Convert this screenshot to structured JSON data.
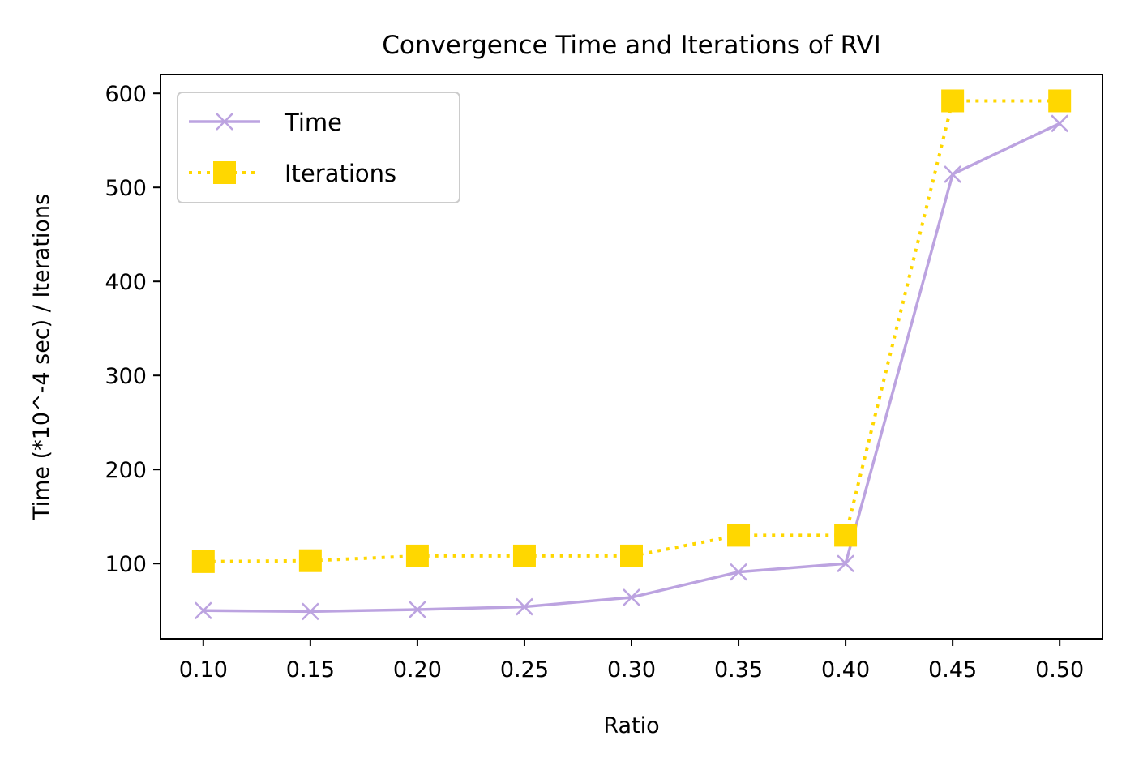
{
  "chart_data": {
    "type": "line",
    "title": "Convergence Time and Iterations of RVI",
    "xlabel": "Ratio",
    "ylabel": "Time (*10^-4 sec) / Iterations",
    "x": [
      0.1,
      0.15,
      0.2,
      0.25,
      0.3,
      0.35,
      0.4,
      0.45,
      0.5
    ],
    "x_tick_labels": [
      "0.10",
      "0.15",
      "0.20",
      "0.25",
      "0.30",
      "0.35",
      "0.40",
      "0.45",
      "0.50"
    ],
    "y_ticks": [
      100,
      200,
      300,
      400,
      500,
      600
    ],
    "y_tick_labels": [
      "100",
      "200",
      "300",
      "400",
      "500",
      "600"
    ],
    "xlim": [
      0.08,
      0.52
    ],
    "ylim": [
      20,
      620
    ],
    "grid": false,
    "legend_position": "top-left",
    "series": [
      {
        "name": "Time",
        "values": [
          50,
          49,
          51,
          54,
          64,
          91,
          100,
          514,
          568
        ],
        "color": "#bca3e0",
        "line_style": "solid",
        "marker": "x"
      },
      {
        "name": "Iterations",
        "values": [
          102,
          103,
          108,
          108,
          108,
          130,
          130,
          592,
          592
        ],
        "color": "#ffd700",
        "line_style": "dotted",
        "marker": "square"
      }
    ]
  }
}
